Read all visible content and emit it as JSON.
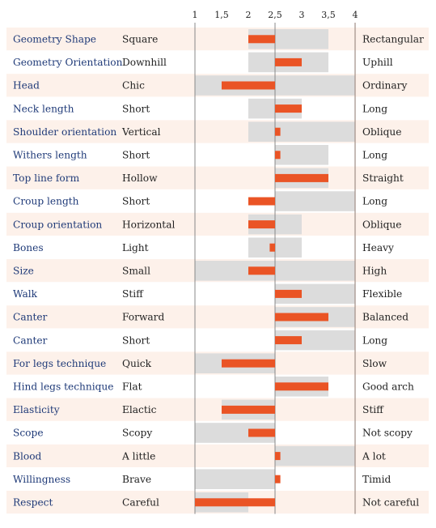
{
  "chart_data": {
    "type": "bar",
    "title": "",
    "xlabel": "",
    "ylabel": "",
    "xlim": [
      1,
      4
    ],
    "ticks": [
      {
        "v": 1,
        "t": "1"
      },
      {
        "v": 1.5,
        "t": "1,5"
      },
      {
        "v": 2,
        "t": "2"
      },
      {
        "v": 2.5,
        "t": "2,5"
      },
      {
        "v": 3,
        "t": "3"
      },
      {
        "v": 3.5,
        "t": "3,5"
      },
      {
        "v": 4,
        "t": "4"
      }
    ],
    "baseline": 2.5,
    "grid": false,
    "legend": "none",
    "colors": {
      "bar": "#ea5425",
      "range": "#dcdcdc",
      "stripe": "#fdf1ea",
      "trait_text": "#1f3a78",
      "text": "#222222",
      "axis_line": "#888888",
      "right_line": "#a08e86"
    },
    "rows": [
      {
        "trait": "Geometry Shape",
        "low": "Square",
        "high": "Rectangular",
        "value": 2.0,
        "range": [
          2.0,
          3.5
        ]
      },
      {
        "trait": "Geometry Orientation",
        "low": "Downhill",
        "high": "Uphill",
        "value": 3.0,
        "range": [
          2.0,
          3.5
        ]
      },
      {
        "trait": "Head",
        "low": "Chic",
        "high": "Ordinary",
        "value": 1.5,
        "range": [
          1.0,
          4.0
        ]
      },
      {
        "trait": "Neck length",
        "low": "Short",
        "high": "Long",
        "value": 3.0,
        "range": [
          2.0,
          3.0
        ]
      },
      {
        "trait": "Shoulder orientation",
        "low": "Vertical",
        "high": "Oblique",
        "value": 2.6,
        "range": [
          2.0,
          4.0
        ]
      },
      {
        "trait": "Withers length",
        "low": "Short",
        "high": "Long",
        "value": 2.6,
        "range": [
          2.5,
          3.5
        ]
      },
      {
        "trait": "Top line form",
        "low": "Hollow",
        "high": "Straight",
        "value": 3.5,
        "range": [
          2.5,
          3.5
        ]
      },
      {
        "trait": "Croup length",
        "low": "Short",
        "high": "Long",
        "value": 2.0,
        "range": [
          2.5,
          4.0
        ]
      },
      {
        "trait": "Croup orientation",
        "low": "Horizontal",
        "high": "Oblique",
        "value": 2.0,
        "range": [
          2.0,
          3.0
        ]
      },
      {
        "trait": "Bones",
        "low": "Light",
        "high": "Heavy",
        "value": 2.4,
        "range": [
          2.0,
          3.0
        ]
      },
      {
        "trait": "Size",
        "low": "Small",
        "high": "High",
        "value": 2.0,
        "range": [
          1.0,
          4.0
        ]
      },
      {
        "trait": "Walk",
        "low": "Stiff",
        "high": "Flexible",
        "value": 3.0,
        "range": [
          2.5,
          4.0
        ]
      },
      {
        "trait": "Canter",
        "low": "Forward",
        "high": "Balanced",
        "value": 3.5,
        "range": [
          2.5,
          4.0
        ]
      },
      {
        "trait": "Canter",
        "low": "Short",
        "high": "Long",
        "value": 3.0,
        "range": [
          2.5,
          4.0
        ]
      },
      {
        "trait": "For legs technique",
        "low": "Quick",
        "high": "Slow",
        "value": 1.5,
        "range": [
          1.0,
          2.5
        ]
      },
      {
        "trait": "Hind legs technique",
        "low": "Flat",
        "high": "Good arch",
        "value": 3.5,
        "range": [
          2.5,
          3.5
        ]
      },
      {
        "trait": "Elasticity",
        "low": "Elactic",
        "high": "Stiff",
        "value": 1.5,
        "range": [
          1.5,
          2.5
        ]
      },
      {
        "trait": "Scope",
        "low": "Scopy",
        "high": "Not scopy",
        "value": 2.0,
        "range": [
          1.0,
          2.5
        ]
      },
      {
        "trait": "Blood",
        "low": "A little",
        "high": "A lot",
        "value": 2.6,
        "range": [
          2.5,
          4.0
        ]
      },
      {
        "trait": "Willingness",
        "low": "Brave",
        "high": "Timid",
        "value": 2.6,
        "range": [
          1.0,
          2.5
        ]
      },
      {
        "trait": "Respect",
        "low": "Careful",
        "high": "Not careful",
        "value": 1.0,
        "range": [
          1.0,
          2.0
        ]
      }
    ]
  }
}
